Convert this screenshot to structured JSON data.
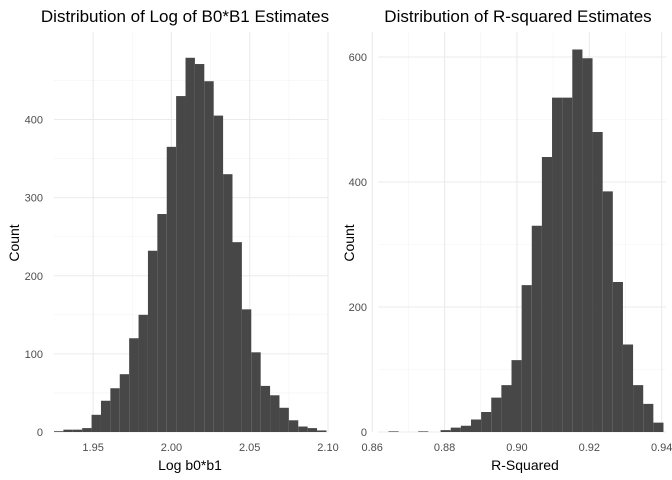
{
  "chart_data": [
    {
      "type": "bar",
      "title": "Distribution of Log of B0*B1 Estimates",
      "xlabel": "Log b0*b1",
      "ylabel": "Count",
      "xlim": [
        1.925,
        2.1
      ],
      "ylim": [
        0,
        512
      ],
      "x_ticks": [
        1.95,
        2.0,
        2.05,
        2.1
      ],
      "x_tick_labels": [
        "1.95",
        "2.00",
        "2.05",
        "2.10"
      ],
      "y_ticks": [
        0,
        100,
        200,
        300,
        400
      ],
      "y_tick_labels": [
        "0",
        "100",
        "200",
        "300",
        "400"
      ],
      "grid": true,
      "legend": "none",
      "color": "#474747",
      "bin_starts": [
        1.925,
        1.931,
        1.937,
        1.943,
        1.949,
        1.955,
        1.961,
        1.967,
        1.973,
        1.979,
        1.985,
        1.991,
        1.997,
        2.003,
        2.009,
        2.015,
        2.021,
        2.027,
        2.033,
        2.039,
        2.045,
        2.051,
        2.057,
        2.063,
        2.069,
        2.075,
        2.081,
        2.087,
        2.093
      ],
      "bin_width": 0.006,
      "values": [
        1,
        3,
        3,
        5,
        22,
        40,
        56,
        74,
        120,
        150,
        232,
        279,
        365,
        430,
        479,
        471,
        449,
        405,
        330,
        243,
        157,
        102,
        59,
        47,
        31,
        15,
        7,
        5,
        2
      ]
    },
    {
      "type": "bar",
      "title": "Distribution of R-squared Estimates",
      "xlabel": "R-Squared",
      "ylabel": "Count",
      "xlim": [
        0.8616,
        0.9412
      ],
      "ylim": [
        0,
        640
      ],
      "x_ticks": [
        0.86,
        0.88,
        0.9,
        0.92,
        0.94
      ],
      "x_tick_labels": [
        "0.86",
        "0.88",
        "0.90",
        "0.92",
        "0.94"
      ],
      "y_ticks": [
        0,
        200,
        400,
        600
      ],
      "y_tick_labels": [
        "0",
        "200",
        "400",
        "600"
      ],
      "grid": true,
      "legend": "none",
      "color": "#474747",
      "bin_starts": [
        0.8645,
        0.8727,
        0.8789,
        0.8817,
        0.8845,
        0.8873,
        0.8901,
        0.8929,
        0.8957,
        0.8985,
        0.9013,
        0.9041,
        0.9069,
        0.9097,
        0.9125,
        0.9153,
        0.9181,
        0.9209,
        0.9237,
        0.9265,
        0.9293,
        0.9321,
        0.9349,
        0.9377
      ],
      "bin_width": 0.0028,
      "values": [
        1,
        1,
        3,
        7,
        10,
        20,
        32,
        55,
        75,
        115,
        235,
        330,
        440,
        535,
        535,
        612,
        598,
        480,
        385,
        240,
        140,
        75,
        45,
        15
      ]
    }
  ]
}
